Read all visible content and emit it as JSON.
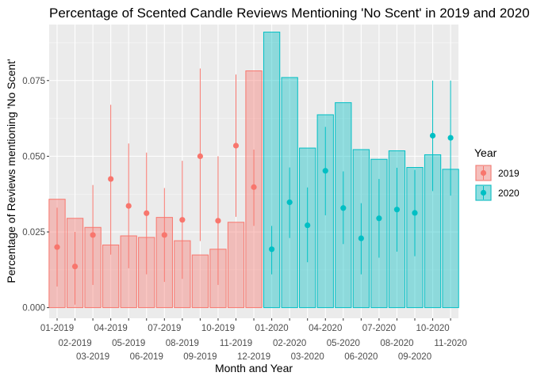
{
  "chart_data": {
    "type": "bar",
    "title": "Percentage of Scented Candle Reviews Mentioning 'No Scent' in 2019 and 2020",
    "xlabel": "Month and Year",
    "ylabel": "Percentage of Reviews mentioning 'No Scent'",
    "ylim": [
      -0.0035,
      0.0935
    ],
    "yticks": [
      0.0,
      0.025,
      0.05,
      0.075
    ],
    "ytick_labels": [
      "0.000",
      "0.025",
      "0.050",
      "0.075"
    ],
    "grid": true,
    "legend_position": "right",
    "legend_title": "Year",
    "categories": [
      "01-2019",
      "02-2019",
      "03-2019",
      "04-2019",
      "05-2019",
      "06-2019",
      "07-2019",
      "08-2019",
      "09-2019",
      "10-2019",
      "11-2019",
      "12-2019",
      "01-2020",
      "02-2020",
      "03-2020",
      "04-2020",
      "05-2020",
      "06-2020",
      "07-2020",
      "08-2020",
      "09-2020",
      "10-2020",
      "11-2020"
    ],
    "series": [
      {
        "name": "2019",
        "fill": "#f8766d",
        "bar_values": [
          0.0358,
          0.0295,
          0.0265,
          0.0207,
          0.0237,
          0.0232,
          0.0298,
          0.0221,
          0.0174,
          0.0193,
          0.0282,
          0.0782
        ],
        "points": [
          0.02,
          0.0136,
          0.024,
          0.0425,
          0.0336,
          0.0312,
          0.024,
          0.029,
          0.05,
          0.0287,
          0.0535,
          0.0398
        ],
        "error_low": [
          0.007,
          0.001,
          0.0075,
          0.0175,
          0.013,
          0.011,
          0.0085,
          0.0095,
          0.022,
          0.0075,
          0.03,
          0.027
        ],
        "error_high": [
          0.033,
          0.025,
          0.0405,
          0.067,
          0.0542,
          0.0512,
          0.0395,
          0.0485,
          0.079,
          0.05,
          0.077,
          0.0522
        ]
      },
      {
        "name": "2020",
        "fill": "#00bfc4",
        "bar_values": [
          0.091,
          0.076,
          0.0527,
          0.0637,
          0.0677,
          0.0522,
          0.049,
          0.0518,
          0.0463,
          0.0505,
          0.0457
        ],
        "points": [
          0.0193,
          0.0348,
          0.0272,
          0.0452,
          0.0329,
          0.0229,
          0.0295,
          0.0324,
          0.0313,
          0.0568,
          0.0561
        ],
        "error_low": [
          0.011,
          0.023,
          0.015,
          0.0305,
          0.021,
          0.011,
          0.0165,
          0.0185,
          0.017,
          0.0385,
          0.037
        ],
        "error_high": [
          0.027,
          0.0463,
          0.0397,
          0.0597,
          0.045,
          0.0345,
          0.0425,
          0.0462,
          0.0455,
          0.075,
          0.075
        ]
      }
    ]
  }
}
